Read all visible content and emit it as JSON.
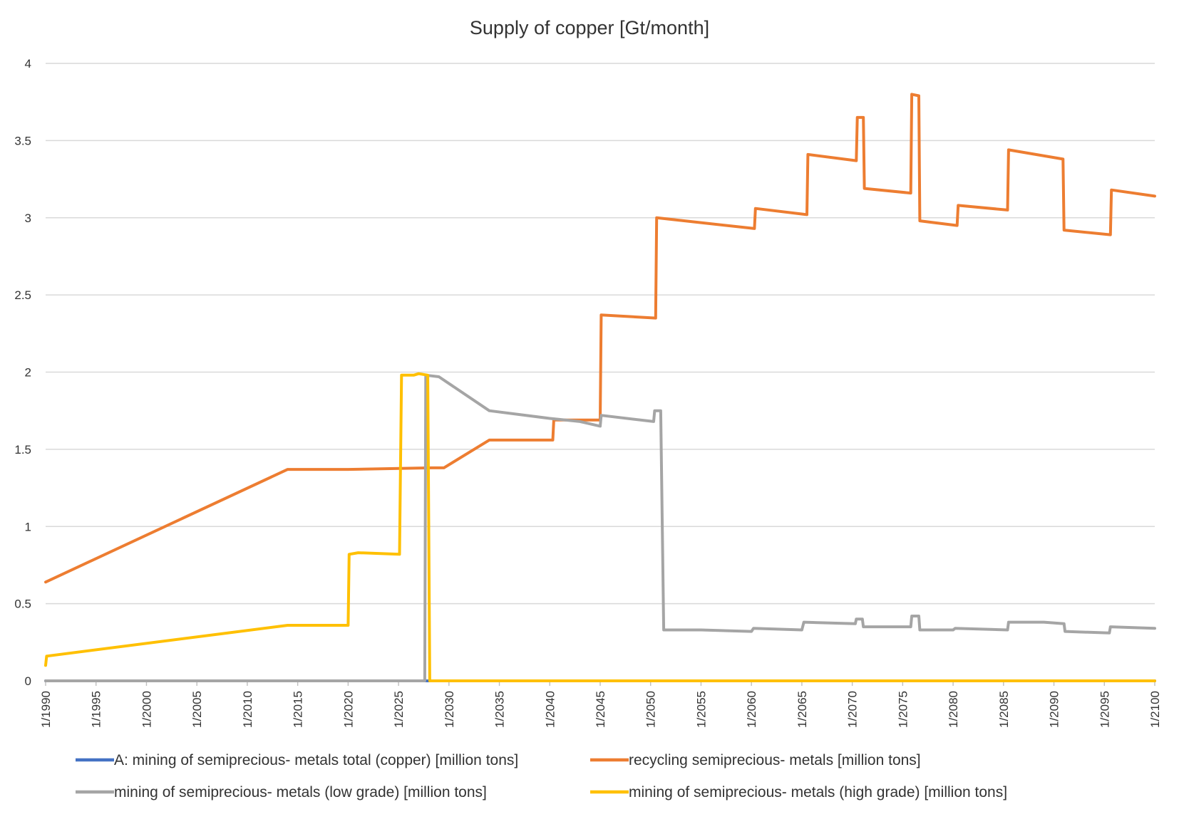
{
  "chart_data": {
    "type": "line",
    "title": "Supply of copper [Gt/month]",
    "xlabel": "",
    "ylabel": "",
    "xlim": [
      1990,
      2100
    ],
    "ylim": [
      0,
      4
    ],
    "y_ticks": [
      0,
      0.5,
      1,
      1.5,
      2,
      2.5,
      3,
      3.5,
      4
    ],
    "y_tick_labels": [
      "0",
      "0.5",
      "1",
      "1.5",
      "2",
      "2.5",
      "3",
      "3.5",
      "4"
    ],
    "x_ticks": [
      1990,
      1995,
      2000,
      2005,
      2010,
      2015,
      2020,
      2025,
      2030,
      2035,
      2040,
      2045,
      2050,
      2055,
      2060,
      2065,
      2070,
      2075,
      2080,
      2085,
      2090,
      2095,
      2100
    ],
    "x_tick_labels": [
      "1/1990",
      "1/1995",
      "1/2000",
      "1/2005",
      "1/2010",
      "1/2015",
      "1/2020",
      "1/2025",
      "1/2030",
      "1/2035",
      "1/2040",
      "1/2045",
      "1/2050",
      "1/2055",
      "1/2060",
      "1/2065",
      "1/2070",
      "1/2075",
      "1/2080",
      "1/2085",
      "1/2090",
      "1/2095",
      "1/2100"
    ],
    "grid": true,
    "legend_position": "bottom",
    "series": [
      {
        "name": "A: mining of semiprecious- metals total (copper) [million tons]",
        "color": "#4472c4",
        "points": [
          [
            1990,
            0
          ],
          [
            2100,
            0
          ]
        ]
      },
      {
        "name": "recycling semiprecious- metals [million tons]",
        "color": "#ed7d31",
        "points": [
          [
            1990,
            0.64
          ],
          [
            2014,
            1.37
          ],
          [
            2020,
            1.37
          ],
          [
            2028.3,
            1.38
          ],
          [
            2029.5,
            1.38
          ],
          [
            2034,
            1.56
          ],
          [
            2040.3,
            1.56
          ],
          [
            2040.4,
            1.69
          ],
          [
            2045,
            1.69
          ],
          [
            2045.1,
            2.37
          ],
          [
            2050.5,
            2.35
          ],
          [
            2050.6,
            3.0
          ],
          [
            2060.3,
            2.93
          ],
          [
            2060.4,
            3.06
          ],
          [
            2065.5,
            3.02
          ],
          [
            2065.6,
            3.41
          ],
          [
            2070.4,
            3.37
          ],
          [
            2070.5,
            3.65
          ],
          [
            2071.1,
            3.65
          ],
          [
            2071.2,
            3.19
          ],
          [
            2075.8,
            3.16
          ],
          [
            2075.9,
            3.8
          ],
          [
            2076.6,
            3.79
          ],
          [
            2076.7,
            2.98
          ],
          [
            2080.4,
            2.95
          ],
          [
            2080.5,
            3.08
          ],
          [
            2085.4,
            3.05
          ],
          [
            2085.5,
            3.44
          ],
          [
            2090.9,
            3.38
          ],
          [
            2091.0,
            2.92
          ],
          [
            2095.6,
            2.89
          ],
          [
            2095.7,
            3.18
          ],
          [
            2100,
            3.14
          ]
        ]
      },
      {
        "name": "mining of semiprecious- metals (low grade) [million tons]",
        "color": "#a5a5a5",
        "points": [
          [
            1990,
            0
          ],
          [
            2027.6,
            0
          ],
          [
            2027.7,
            1.98
          ],
          [
            2029.0,
            1.97
          ],
          [
            2034,
            1.75
          ],
          [
            2040,
            1.7
          ],
          [
            2043,
            1.68
          ],
          [
            2045,
            1.65
          ],
          [
            2045.1,
            1.72
          ],
          [
            2050.3,
            1.68
          ],
          [
            2050.4,
            1.75
          ],
          [
            2051.0,
            1.75
          ],
          [
            2051.3,
            0.33
          ],
          [
            2055,
            0.33
          ],
          [
            2060,
            0.32
          ],
          [
            2060.2,
            0.34
          ],
          [
            2065,
            0.33
          ],
          [
            2065.2,
            0.38
          ],
          [
            2070.3,
            0.37
          ],
          [
            2070.4,
            0.4
          ],
          [
            2071.0,
            0.4
          ],
          [
            2071.1,
            0.35
          ],
          [
            2075.8,
            0.35
          ],
          [
            2075.9,
            0.42
          ],
          [
            2076.6,
            0.42
          ],
          [
            2076.7,
            0.33
          ],
          [
            2080,
            0.33
          ],
          [
            2080.2,
            0.34
          ],
          [
            2085.4,
            0.33
          ],
          [
            2085.5,
            0.38
          ],
          [
            2089,
            0.38
          ],
          [
            2091.0,
            0.37
          ],
          [
            2091.1,
            0.32
          ],
          [
            2095.5,
            0.31
          ],
          [
            2095.6,
            0.35
          ],
          [
            2100,
            0.34
          ]
        ]
      },
      {
        "name": "mining of semiprecious- metals (high grade) [million tons]",
        "color": "#ffc000",
        "points": [
          [
            1990,
            0.1
          ],
          [
            1990.1,
            0.16
          ],
          [
            2014,
            0.36
          ],
          [
            2020,
            0.36
          ],
          [
            2020.1,
            0.82
          ],
          [
            2021,
            0.83
          ],
          [
            2025.1,
            0.82
          ],
          [
            2025.3,
            1.98
          ],
          [
            2026.5,
            1.98
          ],
          [
            2027.0,
            1.99
          ],
          [
            2027.9,
            1.98
          ],
          [
            2028.1,
            0
          ],
          [
            2100,
            0
          ]
        ]
      }
    ]
  }
}
